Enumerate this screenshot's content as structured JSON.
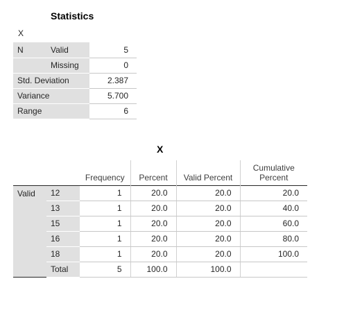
{
  "statistics": {
    "title": "Statistics",
    "variable_label": "X",
    "rows": [
      {
        "group": "N",
        "label": "Valid",
        "value": "5"
      },
      {
        "group": "",
        "label": "Missing",
        "value": "0"
      },
      {
        "group": "Std. Deviation",
        "label": "",
        "value": "2.387"
      },
      {
        "group": "Variance",
        "label": "",
        "value": "5.700"
      },
      {
        "group": "Range",
        "label": "",
        "value": "6"
      }
    ]
  },
  "frequency": {
    "title": "X",
    "headers": {
      "frequency": "Frequency",
      "percent": "Percent",
      "valid_percent": "Valid Percent",
      "cumulative_line1": "Cumulative",
      "cumulative_line2": "Percent"
    },
    "group_label": "Valid",
    "rows": [
      {
        "label": "12",
        "frequency": "1",
        "percent": "20.0",
        "valid_percent": "20.0",
        "cumulative": "20.0"
      },
      {
        "label": "13",
        "frequency": "1",
        "percent": "20.0",
        "valid_percent": "20.0",
        "cumulative": "40.0"
      },
      {
        "label": "15",
        "frequency": "1",
        "percent": "20.0",
        "valid_percent": "20.0",
        "cumulative": "60.0"
      },
      {
        "label": "16",
        "frequency": "1",
        "percent": "20.0",
        "valid_percent": "20.0",
        "cumulative": "80.0"
      },
      {
        "label": "18",
        "frequency": "1",
        "percent": "20.0",
        "valid_percent": "20.0",
        "cumulative": "100.0"
      },
      {
        "label": "Total",
        "frequency": "5",
        "percent": "100.0",
        "valid_percent": "100.0",
        "cumulative": ""
      }
    ]
  }
}
